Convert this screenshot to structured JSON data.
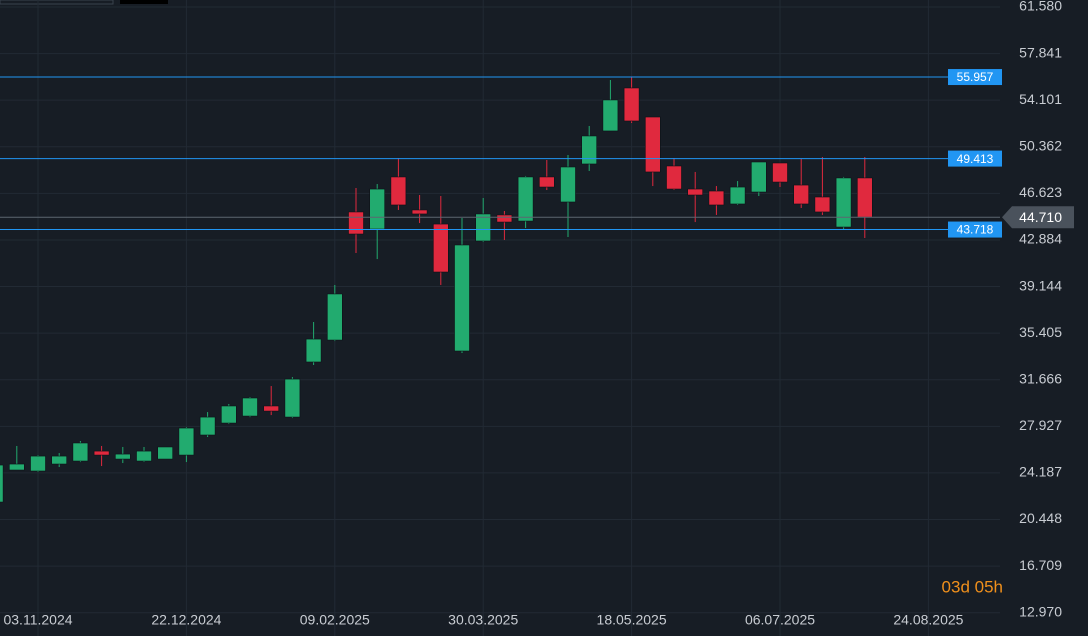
{
  "chart_data": {
    "type": "candlestick",
    "categories": [
      null,
      null,
      "03.11.2024",
      null,
      null,
      null,
      null,
      null,
      null,
      "22.12.2024",
      null,
      null,
      null,
      null,
      null,
      null,
      "09.02.2025",
      null,
      null,
      null,
      null,
      null,
      null,
      "30.03.2025",
      null,
      null,
      null,
      null,
      null,
      null,
      "18.05.2025",
      null,
      null,
      null,
      null,
      null,
      null,
      "06.07.2025",
      null,
      null,
      null,
      null,
      null,
      null,
      "24.08.2025"
    ],
    "open": [
      21.85,
      24.42,
      24.34,
      24.9,
      25.14,
      25.94,
      25.3,
      25.14,
      25.3,
      25.62,
      27.23,
      28.19,
      28.75,
      29.56,
      28.67,
      33.09,
      34.85,
      45.13,
      43.76,
      47.94,
      45.29,
      44.16,
      33.97,
      42.8,
      44.89,
      44.4,
      47.94,
      45.93,
      48.98,
      51.63,
      55.08,
      52.75,
      48.82,
      46.97,
      46.81,
      45.77,
      46.73,
      49.06,
      47.29,
      46.33,
      43.92,
      47.86,
      null,
      null,
      null
    ],
    "high": [
      24.82,
      26.35,
      25.62,
      25.78,
      26.75,
      26.35,
      26.27,
      26.27,
      26.27,
      27.87,
      29.07,
      29.72,
      30.28,
      31.16,
      31.88,
      36.3,
      39.27,
      47.05,
      47.37,
      49.46,
      46.49,
      46.41,
      44.65,
      46.25,
      45.21,
      48.02,
      49.3,
      49.7,
      52.03,
      55.72,
      55.96,
      52.75,
      49.46,
      48.34,
      47.21,
      47.61,
      49.14,
      49.06,
      49.38,
      49.54,
      47.94,
      49.54,
      null,
      null,
      null
    ],
    "low": [
      21.85,
      24.42,
      24.26,
      24.66,
      25.06,
      24.74,
      24.98,
      25.06,
      25.3,
      25.06,
      27.07,
      28.11,
      28.67,
      28.83,
      28.59,
      32.85,
      34.77,
      41.84,
      41.35,
      45.29,
      44.24,
      39.27,
      33.81,
      42.72,
      42.88,
      43.84,
      46.89,
      43.12,
      48.42,
      51.63,
      52.27,
      47.21,
      46.89,
      44.32,
      44.89,
      45.69,
      46.41,
      47.13,
      45.45,
      44.89,
      43.76,
      43.04,
      null,
      null,
      null
    ],
    "close": [
      24.82,
      24.9,
      25.54,
      25.54,
      26.59,
      25.62,
      25.7,
      25.94,
      26.27,
      27.79,
      28.67,
      29.56,
      30.2,
      29.15,
      31.72,
      34.93,
      38.55,
      43.36,
      46.97,
      45.69,
      44.97,
      40.31,
      42.48,
      44.97,
      44.32,
      47.94,
      47.13,
      48.74,
      51.23,
      54.12,
      52.43,
      48.34,
      46.97,
      46.49,
      45.69,
      47.13,
      49.14,
      47.53,
      45.77,
      45.13,
      47.86,
      44.71,
      null,
      null,
      null
    ],
    "up_color": "#22ab6f",
    "down_color": "#e0293e",
    "ylim": [
      11.1,
      62.14
    ],
    "yticks": [
      {
        "value": 61.58,
        "label": "61.580"
      },
      {
        "value": 57.841,
        "label": "57.841"
      },
      {
        "value": 54.101,
        "label": "54.101"
      },
      {
        "value": 50.362,
        "label": "50.362"
      },
      {
        "value": 46.623,
        "label": "46.623"
      },
      {
        "value": 42.884,
        "label": "42.884"
      },
      {
        "value": 39.144,
        "label": "39.144"
      },
      {
        "value": 35.405,
        "label": "35.405"
      },
      {
        "value": 31.666,
        "label": "31.666"
      },
      {
        "value": 27.927,
        "label": "27.927"
      },
      {
        "value": 24.187,
        "label": "24.187"
      },
      {
        "value": 20.448,
        "label": "20.448"
      },
      {
        "value": 16.709,
        "label": "16.709"
      },
      {
        "value": 12.97,
        "label": "12.970"
      }
    ],
    "grid": true,
    "levels": [
      55.957,
      49.413,
      43.718
    ],
    "level_color": "#2196f3",
    "last_price": 44.71,
    "last_price_label": "44.710",
    "countdown": "03d 05h"
  }
}
